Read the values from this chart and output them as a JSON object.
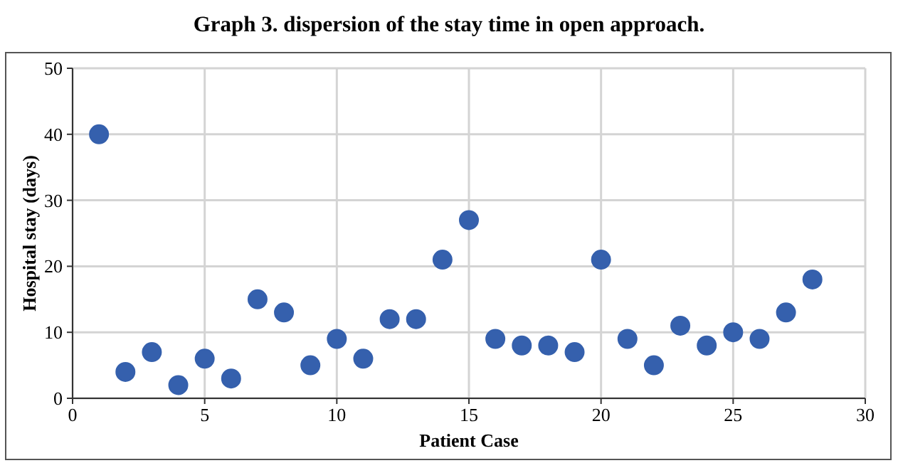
{
  "chart_data": {
    "type": "scatter",
    "title": "Graph 3. dispersion of the stay time in open approach.",
    "xlabel": "Patient Case",
    "ylabel": "Hospital stay (days)",
    "x": [
      1,
      2,
      3,
      4,
      5,
      6,
      7,
      8,
      9,
      10,
      11,
      12,
      13,
      14,
      15,
      16,
      17,
      18,
      19,
      20,
      21,
      22,
      23,
      24,
      25,
      26,
      27,
      28
    ],
    "series": [
      {
        "color": "#3560ad",
        "values": [
          40,
          4,
          7,
          2,
          6,
          3,
          15,
          13,
          5,
          9,
          6,
          12,
          12,
          21,
          27,
          9,
          8,
          8,
          7,
          21,
          9,
          5,
          11,
          8,
          10,
          9,
          13,
          18
        ]
      }
    ],
    "xlim": [
      0,
      30
    ],
    "xticks": [
      0,
      5,
      10,
      15,
      20,
      25,
      30
    ],
    "ylim": [
      0,
      50
    ],
    "yticks": [
      0,
      10,
      20,
      30,
      40,
      50
    ],
    "grid": true,
    "marker": "circle"
  }
}
